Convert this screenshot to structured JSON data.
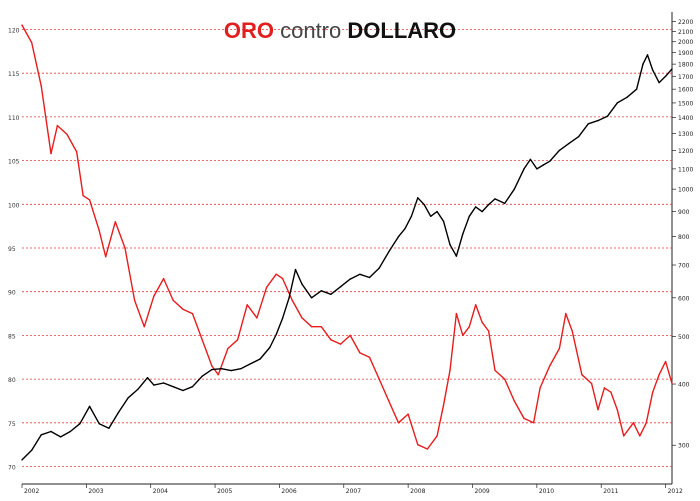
{
  "chart_data": {
    "type": "line",
    "title_parts": [
      "ORO",
      "contro",
      "DOLLARO"
    ],
    "x_tick_labels": [
      "2002",
      "2003",
      "2004",
      "2005",
      "2006",
      "2007",
      "2008",
      "2009",
      "2010",
      "2011",
      "2012"
    ],
    "x_range": [
      2002.0,
      2012.1
    ],
    "left_axis": {
      "ticks": [
        "70",
        "75",
        "80",
        "85",
        "90",
        "95",
        "100",
        "105",
        "110",
        "115",
        "120"
      ],
      "range": [
        68,
        122
      ]
    },
    "right_axis": {
      "scale": "log",
      "ticks": [
        "300",
        "400",
        "500",
        "600",
        "700",
        "800",
        "900",
        "1000",
        "1100",
        "1200",
        "1300",
        "1400",
        "1500",
        "1600",
        "1700",
        "1800",
        "1900",
        "2000",
        "2100",
        "2200"
      ],
      "range": [
        250,
        2300
      ]
    },
    "grid": "horizontal dotted red",
    "series": [
      {
        "axis": "left",
        "color": "#e81c1c",
        "points": [
          [
            2002.0,
            120.5
          ],
          [
            2002.15,
            118.5
          ],
          [
            2002.3,
            113.5
          ],
          [
            2002.45,
            105.8
          ],
          [
            2002.55,
            109.0
          ],
          [
            2002.7,
            108.0
          ],
          [
            2002.85,
            106.0
          ],
          [
            2002.95,
            101.0
          ],
          [
            2003.05,
            100.5
          ],
          [
            2003.2,
            97.0
          ],
          [
            2003.3,
            94.0
          ],
          [
            2003.45,
            98.0
          ],
          [
            2003.6,
            95.0
          ],
          [
            2003.75,
            89.0
          ],
          [
            2003.9,
            86.0
          ],
          [
            2004.05,
            89.5
          ],
          [
            2004.2,
            91.5
          ],
          [
            2004.35,
            89.0
          ],
          [
            2004.5,
            88.0
          ],
          [
            2004.65,
            87.5
          ],
          [
            2004.8,
            84.5
          ],
          [
            2004.95,
            81.5
          ],
          [
            2005.05,
            80.5
          ],
          [
            2005.2,
            83.5
          ],
          [
            2005.35,
            84.5
          ],
          [
            2005.5,
            88.5
          ],
          [
            2005.65,
            87.0
          ],
          [
            2005.8,
            90.5
          ],
          [
            2005.95,
            92.0
          ],
          [
            2006.05,
            91.5
          ],
          [
            2006.2,
            89.0
          ],
          [
            2006.35,
            87.0
          ],
          [
            2006.5,
            86.0
          ],
          [
            2006.65,
            86.0
          ],
          [
            2006.8,
            84.5
          ],
          [
            2006.95,
            84.0
          ],
          [
            2007.1,
            85.0
          ],
          [
            2007.25,
            83.0
          ],
          [
            2007.4,
            82.5
          ],
          [
            2007.55,
            80.0
          ],
          [
            2007.7,
            77.5
          ],
          [
            2007.85,
            75.0
          ],
          [
            2008.0,
            76.0
          ],
          [
            2008.15,
            72.5
          ],
          [
            2008.3,
            72.0
          ],
          [
            2008.45,
            73.5
          ],
          [
            2008.55,
            77.0
          ],
          [
            2008.65,
            81.0
          ],
          [
            2008.75,
            87.5
          ],
          [
            2008.85,
            85.0
          ],
          [
            2008.95,
            86.0
          ],
          [
            2009.05,
            88.5
          ],
          [
            2009.15,
            86.5
          ],
          [
            2009.25,
            85.5
          ],
          [
            2009.35,
            81.0
          ],
          [
            2009.5,
            80.0
          ],
          [
            2009.65,
            77.5
          ],
          [
            2009.8,
            75.5
          ],
          [
            2009.95,
            75.0
          ],
          [
            2010.05,
            79.0
          ],
          [
            2010.2,
            81.5
          ],
          [
            2010.35,
            83.5
          ],
          [
            2010.45,
            87.5
          ],
          [
            2010.55,
            85.5
          ],
          [
            2010.7,
            80.5
          ],
          [
            2010.85,
            79.5
          ],
          [
            2010.95,
            76.5
          ],
          [
            2011.05,
            79.0
          ],
          [
            2011.15,
            78.5
          ],
          [
            2011.25,
            76.5
          ],
          [
            2011.35,
            73.5
          ],
          [
            2011.5,
            75.0
          ],
          [
            2011.6,
            73.5
          ],
          [
            2011.7,
            75.0
          ],
          [
            2011.8,
            78.5
          ],
          [
            2011.9,
            80.5
          ],
          [
            2012.0,
            82.0
          ],
          [
            2012.1,
            79.5
          ]
        ]
      },
      {
        "axis": "right",
        "color": "#000000",
        "points": [
          [
            2002.0,
            280
          ],
          [
            2002.15,
            293
          ],
          [
            2002.3,
            315
          ],
          [
            2002.45,
            320
          ],
          [
            2002.6,
            312
          ],
          [
            2002.75,
            320
          ],
          [
            2002.9,
            332
          ],
          [
            2003.05,
            360
          ],
          [
            2003.2,
            332
          ],
          [
            2003.35,
            325
          ],
          [
            2003.5,
            350
          ],
          [
            2003.65,
            375
          ],
          [
            2003.8,
            390
          ],
          [
            2003.95,
            412
          ],
          [
            2004.05,
            398
          ],
          [
            2004.2,
            402
          ],
          [
            2004.35,
            395
          ],
          [
            2004.5,
            388
          ],
          [
            2004.65,
            395
          ],
          [
            2004.8,
            415
          ],
          [
            2004.95,
            428
          ],
          [
            2005.1,
            430
          ],
          [
            2005.25,
            426
          ],
          [
            2005.4,
            430
          ],
          [
            2005.55,
            440
          ],
          [
            2005.7,
            450
          ],
          [
            2005.85,
            475
          ],
          [
            2005.95,
            505
          ],
          [
            2006.05,
            545
          ],
          [
            2006.15,
            600
          ],
          [
            2006.25,
            685
          ],
          [
            2006.35,
            640
          ],
          [
            2006.5,
            600
          ],
          [
            2006.65,
            620
          ],
          [
            2006.8,
            610
          ],
          [
            2006.95,
            632
          ],
          [
            2007.1,
            655
          ],
          [
            2007.25,
            670
          ],
          [
            2007.4,
            660
          ],
          [
            2007.55,
            690
          ],
          [
            2007.7,
            745
          ],
          [
            2007.85,
            800
          ],
          [
            2007.95,
            830
          ],
          [
            2008.05,
            880
          ],
          [
            2008.15,
            960
          ],
          [
            2008.25,
            930
          ],
          [
            2008.35,
            880
          ],
          [
            2008.45,
            900
          ],
          [
            2008.55,
            860
          ],
          [
            2008.65,
            770
          ],
          [
            2008.75,
            730
          ],
          [
            2008.85,
            810
          ],
          [
            2008.95,
            880
          ],
          [
            2009.05,
            920
          ],
          [
            2009.15,
            900
          ],
          [
            2009.25,
            930
          ],
          [
            2009.35,
            955
          ],
          [
            2009.5,
            935
          ],
          [
            2009.65,
            1000
          ],
          [
            2009.8,
            1100
          ],
          [
            2009.9,
            1150
          ],
          [
            2010.0,
            1100
          ],
          [
            2010.1,
            1120
          ],
          [
            2010.2,
            1140
          ],
          [
            2010.35,
            1200
          ],
          [
            2010.5,
            1240
          ],
          [
            2010.65,
            1280
          ],
          [
            2010.8,
            1360
          ],
          [
            2010.95,
            1380
          ],
          [
            2011.1,
            1410
          ],
          [
            2011.25,
            1500
          ],
          [
            2011.4,
            1540
          ],
          [
            2011.55,
            1600
          ],
          [
            2011.65,
            1800
          ],
          [
            2011.72,
            1880
          ],
          [
            2011.8,
            1750
          ],
          [
            2011.9,
            1650
          ],
          [
            2012.0,
            1700
          ],
          [
            2012.1,
            1760
          ]
        ]
      }
    ]
  }
}
